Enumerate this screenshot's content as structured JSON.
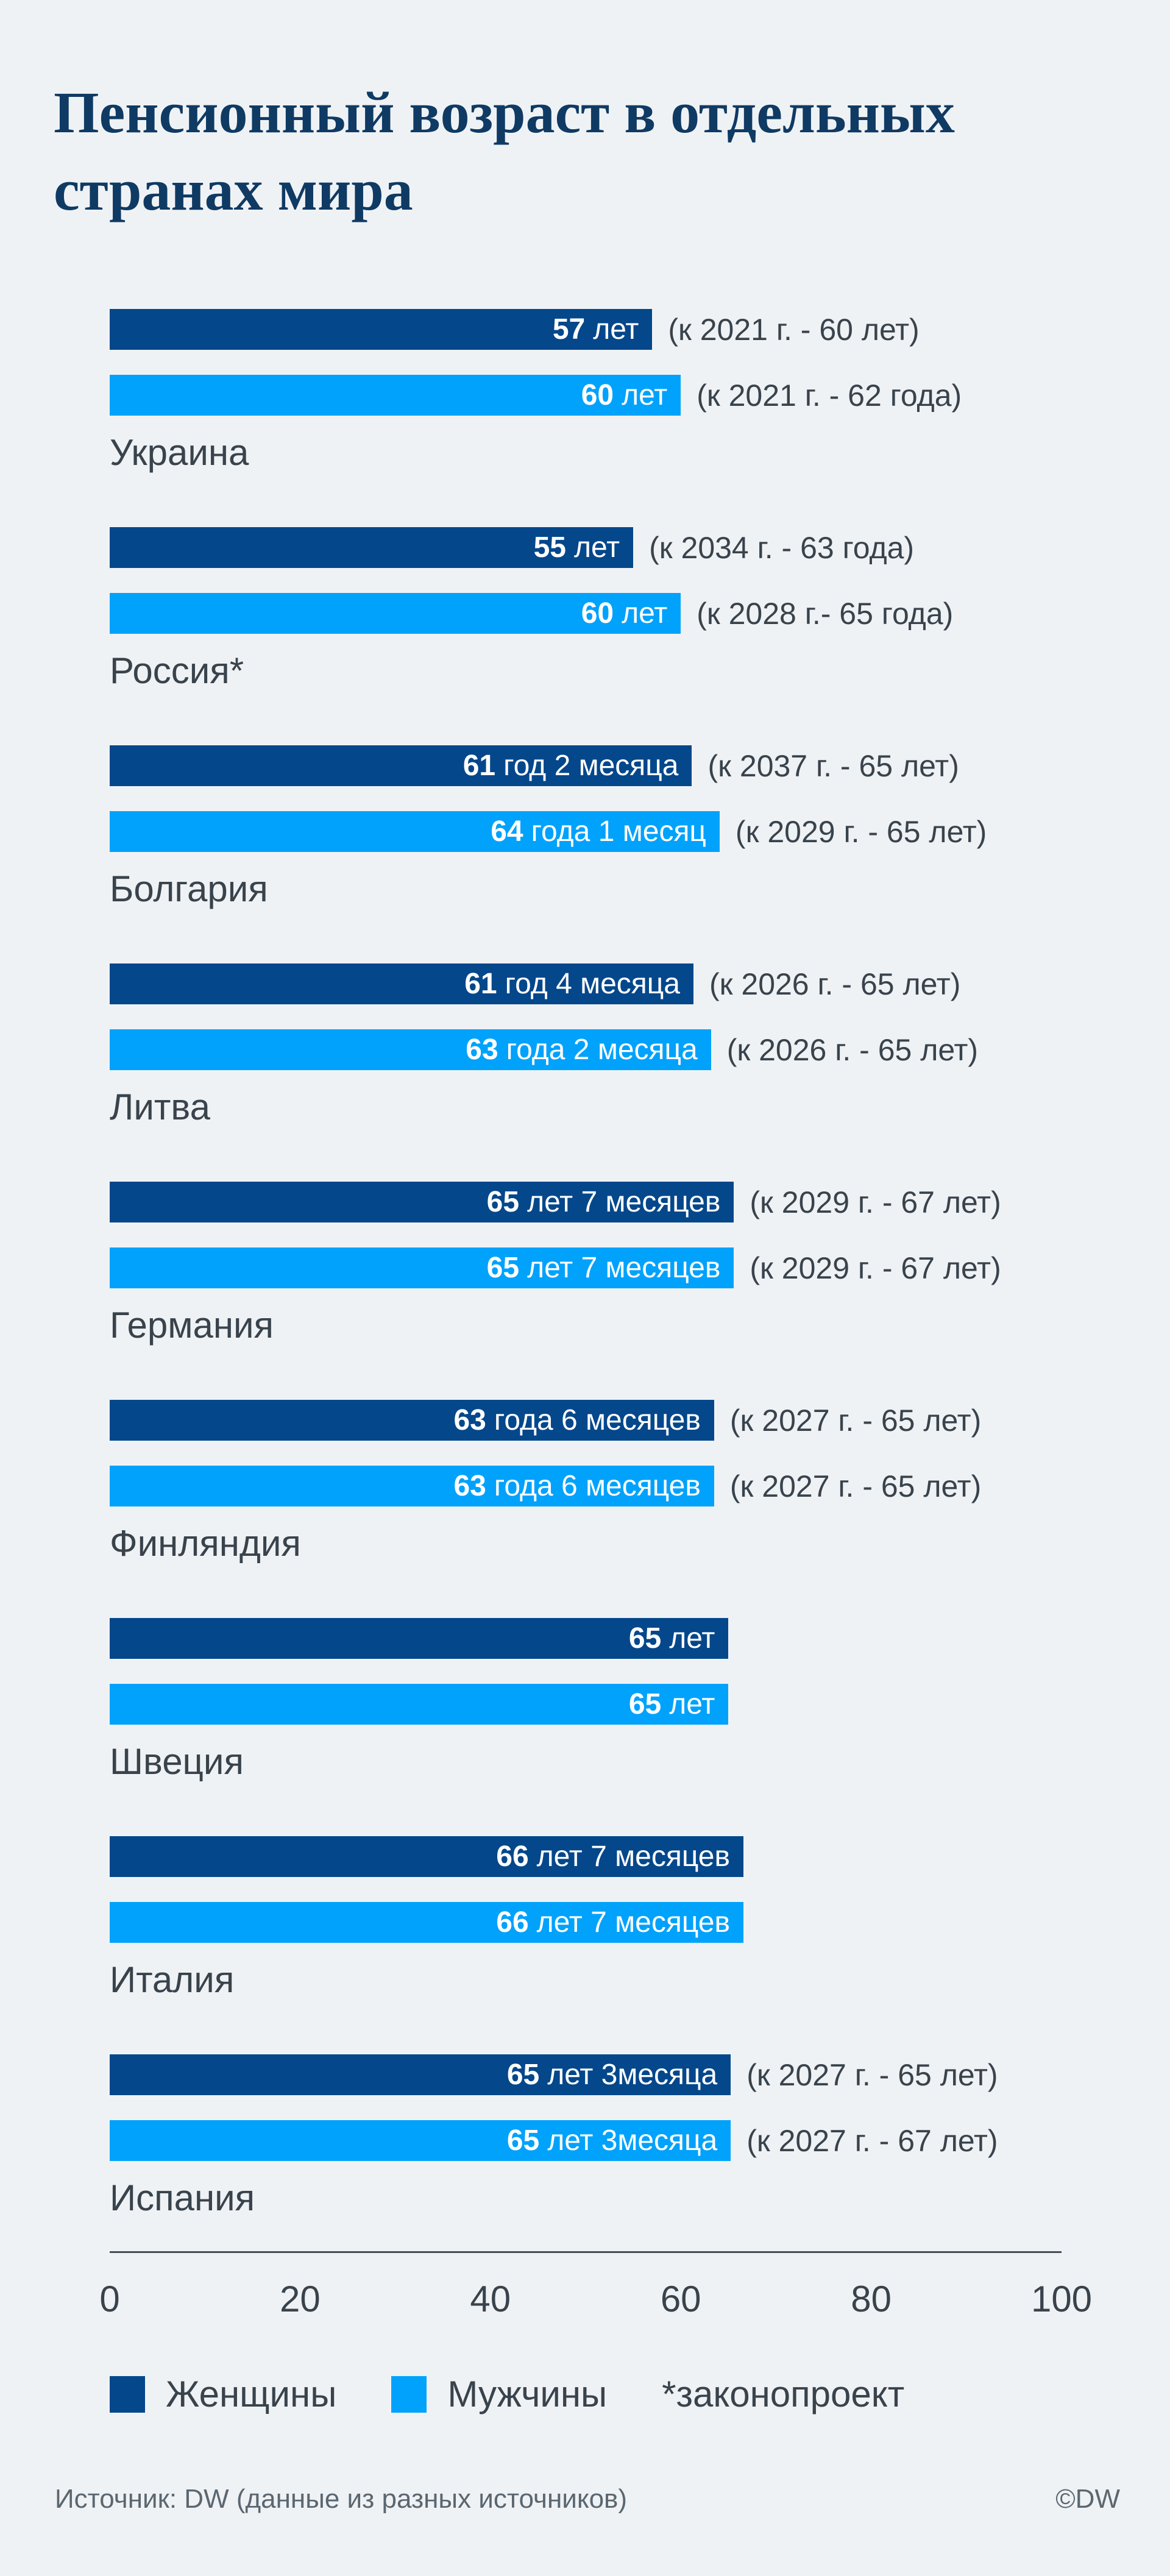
{
  "title_line1": "Пенсионный возраст в отдельных",
  "title_line2": "странах мира",
  "colors": {
    "background": "#eff2f5",
    "women_bar": "#04478b",
    "men_bar": "#00a2fc",
    "title": "#0f3a63",
    "text": "#39434c",
    "source_text": "#5b6770",
    "axis_line": "#454f58",
    "bar_label": "#ffffff"
  },
  "axis": {
    "min": 0,
    "max": 100,
    "ticks": [
      "0",
      "20",
      "40",
      "60",
      "80",
      "100"
    ]
  },
  "legend": {
    "women_label": "Женщины",
    "men_label": "Мужчины",
    "footnote": "*законопроект"
  },
  "source": {
    "label": "Источник: DW (данные из разных источников)",
    "copyright": "©DW"
  },
  "chart_data": {
    "type": "bar",
    "orientation": "horizontal",
    "title": "Пенсионный возраст в отдельных странах мира",
    "xlabel": "",
    "ylabel": "",
    "xlim": [
      0,
      100
    ],
    "grid": false,
    "legend_position": "bottom",
    "series_names": [
      "Женщины",
      "Мужчины"
    ],
    "countries": [
      {
        "name": "Украина",
        "women": {
          "value": 57,
          "num": "57",
          "rest": "лет",
          "note": "(к 2021 г. - 60 лет)"
        },
        "men": {
          "value": 60,
          "num": "60",
          "rest": "лет",
          "note": "(к 2021 г. - 62 года)"
        }
      },
      {
        "name": "Россия*",
        "women": {
          "value": 55,
          "num": "55",
          "rest": "лет",
          "note": "(к 2034 г. - 63 года)"
        },
        "men": {
          "value": 60,
          "num": "60",
          "rest": "лет",
          "note": "(к 2028 г.- 65 года)"
        }
      },
      {
        "name": "Болгария",
        "women": {
          "value": 61.17,
          "num": "61",
          "rest": "год 2 месяца",
          "note": "(к 2037 г. - 65 лет)"
        },
        "men": {
          "value": 64.08,
          "num": "64",
          "rest": "года 1 месяц",
          "note": "(к 2029 г. - 65 лет)"
        }
      },
      {
        "name": "Литва",
        "women": {
          "value": 61.33,
          "num": "61",
          "rest": "год 4 месяца",
          "note": "(к 2026 г. - 65 лет)"
        },
        "men": {
          "value": 63.17,
          "num": "63",
          "rest": "года 2 месяца",
          "note": "(к 2026 г. - 65 лет)"
        }
      },
      {
        "name": "Германия",
        "women": {
          "value": 65.58,
          "num": "65",
          "rest": "лет 7 месяцев",
          "note": "(к 2029 г. - 67 лет)"
        },
        "men": {
          "value": 65.58,
          "num": "65",
          "rest": "лет 7 месяцев",
          "note": "(к 2029 г. - 67 лет)"
        }
      },
      {
        "name": "Финляндия",
        "women": {
          "value": 63.5,
          "num": "63",
          "rest": "года 6 месяцев",
          "note": "(к 2027 г. - 65 лет)"
        },
        "men": {
          "value": 63.5,
          "num": "63",
          "rest": "года 6 месяцев",
          "note": "(к 2027 г. - 65 лет)"
        }
      },
      {
        "name": "Швеция",
        "women": {
          "value": 65,
          "num": "65",
          "rest": "лет",
          "note": ""
        },
        "men": {
          "value": 65,
          "num": "65",
          "rest": "лет",
          "note": ""
        }
      },
      {
        "name": "Италия",
        "women": {
          "value": 66.58,
          "num": "66",
          "rest": "лет 7 месяцев",
          "note": ""
        },
        "men": {
          "value": 66.58,
          "num": "66",
          "rest": "лет 7 месяцев",
          "note": ""
        }
      },
      {
        "name": "Испания",
        "women": {
          "value": 65.25,
          "num": "65",
          "rest": "лет 3месяца",
          "note": "(к 2027 г. - 65 лет)"
        },
        "men": {
          "value": 65.25,
          "num": "65",
          "rest": "лет 3месяца",
          "note": "(к 2027 г. - 67 лет)"
        }
      }
    ]
  }
}
